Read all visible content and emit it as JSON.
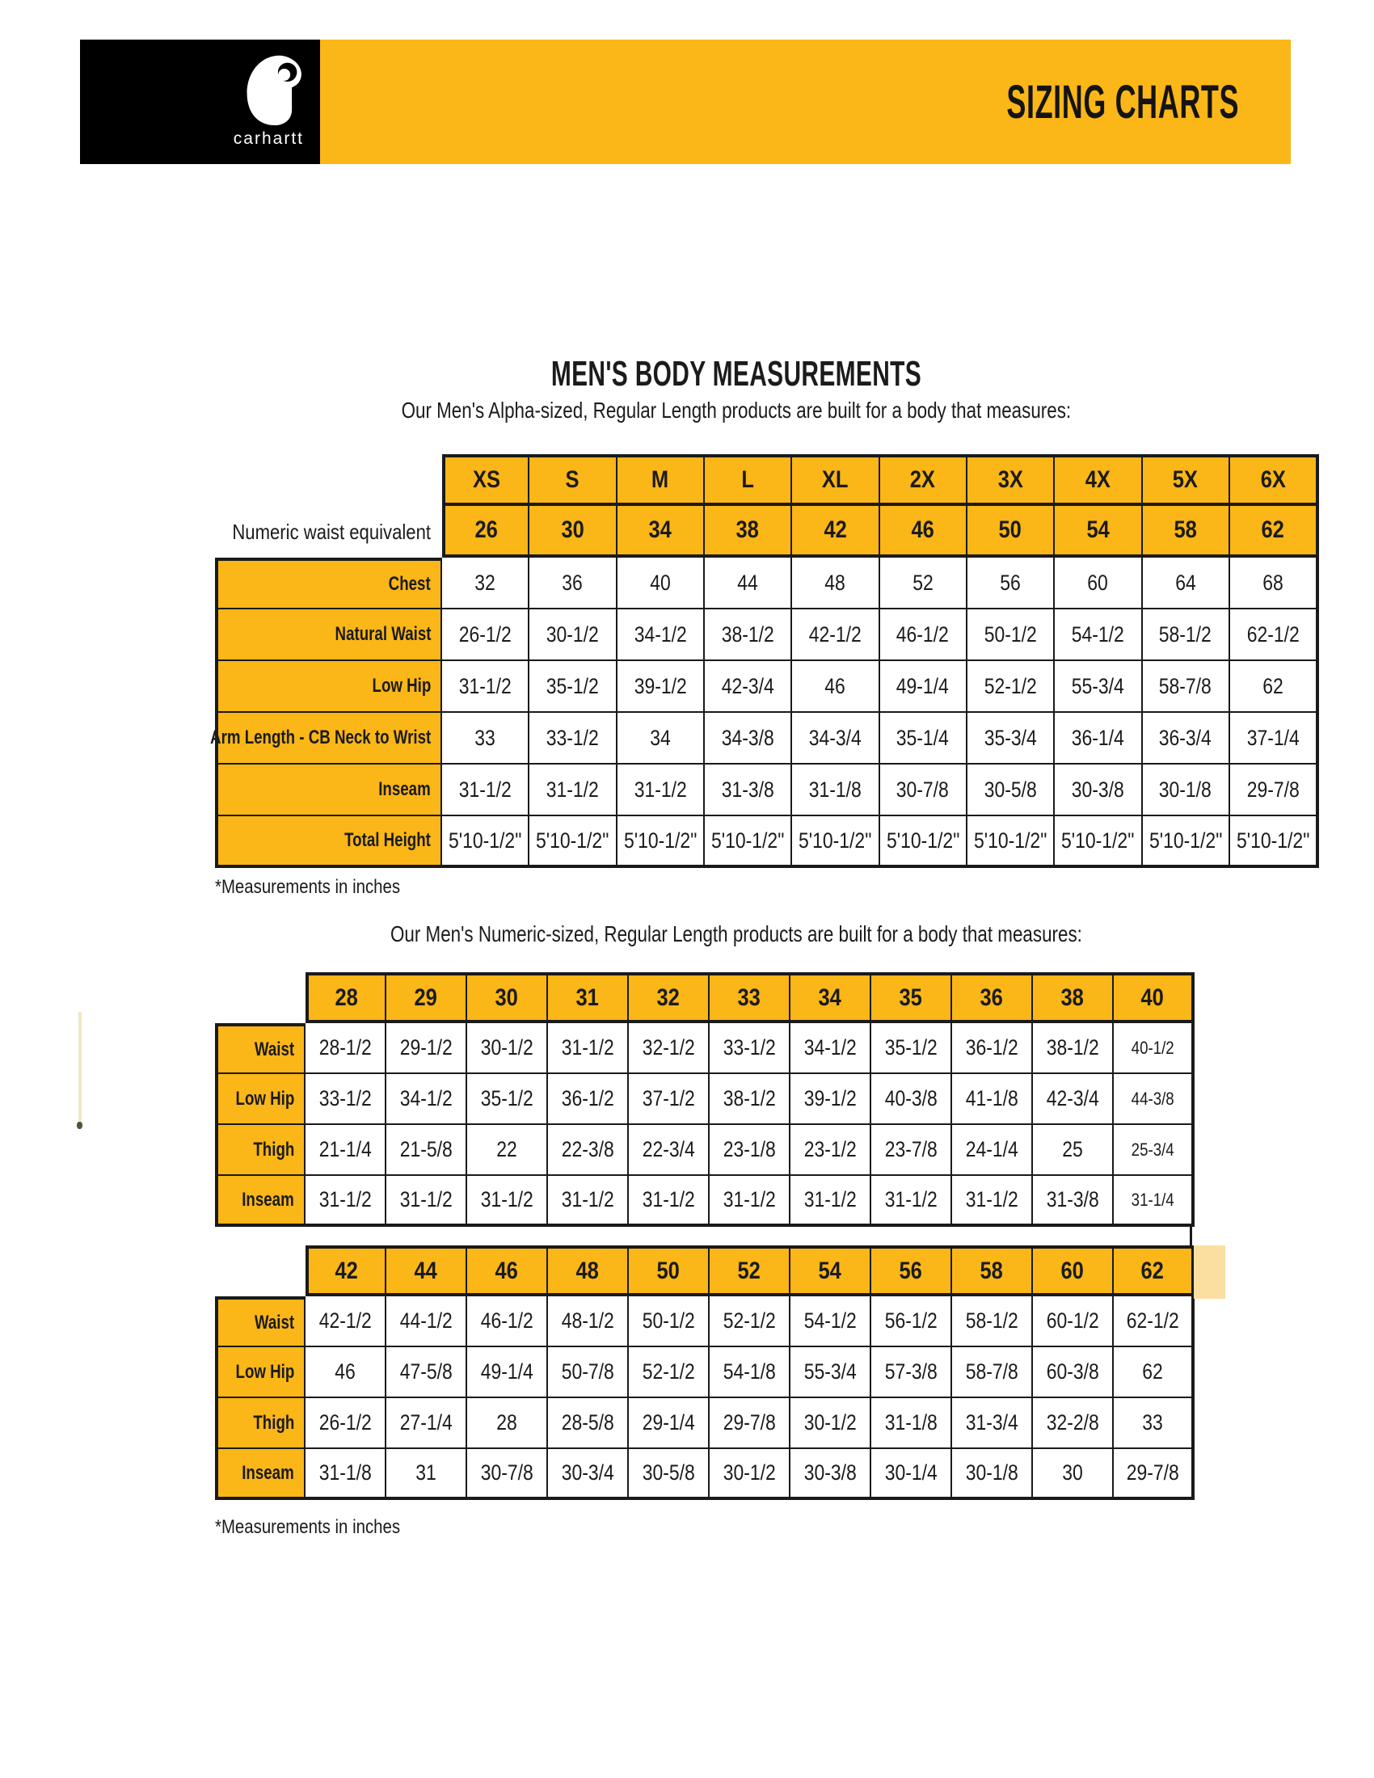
{
  "colors": {
    "brand_yellow": "#FBB617",
    "black": "#000000",
    "table_border": "#1A1A1A",
    "pale_yellow_artifact": "#FBDFA0"
  },
  "banner": {
    "brand_wordmark": "carhartt",
    "title": "SIZING CHARTS"
  },
  "section": {
    "title": "MEN'S BODY MEASUREMENTS",
    "alpha_intro": "Our Men's Alpha-sized, Regular Length products are built for a body that measures:",
    "numeric_intro": "Our Men's Numeric-sized, Regular Length products are built for a body that measures:",
    "footnote": "*Measurements in inches"
  },
  "tables": {
    "alpha": {
      "sizes": [
        "XS",
        "S",
        "M",
        "L",
        "XL",
        "2X",
        "3X",
        "4X",
        "5X",
        "6X"
      ],
      "waist_label": "Numeric waist equivalent",
      "waist_row": [
        "26",
        "30",
        "34",
        "38",
        "42",
        "46",
        "50",
        "54",
        "58",
        "62"
      ],
      "rows": [
        {
          "label": "Chest",
          "values": [
            "32",
            "36",
            "40",
            "44",
            "48",
            "52",
            "56",
            "60",
            "64",
            "68"
          ]
        },
        {
          "label": "Natural Waist",
          "values": [
            "26-1/2",
            "30-1/2",
            "34-1/2",
            "38-1/2",
            "42-1/2",
            "46-1/2",
            "50-1/2",
            "54-1/2",
            "58-1/2",
            "62-1/2"
          ]
        },
        {
          "label": "Low Hip",
          "values": [
            "31-1/2",
            "35-1/2",
            "39-1/2",
            "42-3/4",
            "46",
            "49-1/4",
            "52-1/2",
            "55-3/4",
            "58-7/8",
            "62"
          ]
        },
        {
          "label": "Arm Length - CB Neck to Wrist",
          "values": [
            "33",
            "33-1/2",
            "34",
            "34-3/8",
            "34-3/4",
            "35-1/4",
            "35-3/4",
            "36-1/4",
            "36-3/4",
            "37-1/4"
          ]
        },
        {
          "label": "Inseam",
          "values": [
            "31-1/2",
            "31-1/2",
            "31-1/2",
            "31-3/8",
            "31-1/8",
            "30-7/8",
            "30-5/8",
            "30-3/8",
            "30-1/8",
            "29-7/8"
          ]
        },
        {
          "label": "Total Height",
          "values": [
            "5'10-1/2\"",
            "5'10-1/2\"",
            "5'10-1/2\"",
            "5'10-1/2\"",
            "5'10-1/2\"",
            "5'10-1/2\"",
            "5'10-1/2\"",
            "5'10-1/2\"",
            "5'10-1/2\"",
            "5'10-1/2\""
          ]
        }
      ]
    },
    "numeric_a": {
      "sizes": [
        "28",
        "29",
        "30",
        "31",
        "32",
        "33",
        "34",
        "35",
        "36",
        "38",
        "40"
      ],
      "rows": [
        {
          "label": "Waist",
          "values": [
            "28-1/2",
            "29-1/2",
            "30-1/2",
            "31-1/2",
            "32-1/2",
            "33-1/2",
            "34-1/2",
            "35-1/2",
            "36-1/2",
            "38-1/2",
            "40-1/2"
          ]
        },
        {
          "label": "Low Hip",
          "values": [
            "33-1/2",
            "34-1/2",
            "35-1/2",
            "36-1/2",
            "37-1/2",
            "38-1/2",
            "39-1/2",
            "40-3/8",
            "41-1/8",
            "42-3/4",
            "44-3/8"
          ]
        },
        {
          "label": "Thigh",
          "values": [
            "21-1/4",
            "21-5/8",
            "22",
            "22-3/8",
            "22-3/4",
            "23-1/8",
            "23-1/2",
            "23-7/8",
            "24-1/4",
            "25",
            "25-3/4"
          ]
        },
        {
          "label": "Inseam",
          "values": [
            "31-1/2",
            "31-1/2",
            "31-1/2",
            "31-1/2",
            "31-1/2",
            "31-1/2",
            "31-1/2",
            "31-1/2",
            "31-1/2",
            "31-3/8",
            "31-1/4"
          ]
        }
      ]
    },
    "numeric_b": {
      "sizes": [
        "42",
        "44",
        "46",
        "48",
        "50",
        "52",
        "54",
        "56",
        "58",
        "60",
        "62"
      ],
      "rows": [
        {
          "label": "Waist",
          "values": [
            "42-1/2",
            "44-1/2",
            "46-1/2",
            "48-1/2",
            "50-1/2",
            "52-1/2",
            "54-1/2",
            "56-1/2",
            "58-1/2",
            "60-1/2",
            "62-1/2"
          ]
        },
        {
          "label": "Low Hip",
          "values": [
            "46",
            "47-5/8",
            "49-1/4",
            "50-7/8",
            "52-1/2",
            "54-1/8",
            "55-3/4",
            "57-3/8",
            "58-7/8",
            "60-3/8",
            "62"
          ]
        },
        {
          "label": "Thigh",
          "values": [
            "26-1/2",
            "27-1/4",
            "28",
            "28-5/8",
            "29-1/4",
            "29-7/8",
            "30-1/2",
            "31-1/8",
            "31-3/4",
            "32-2/8",
            "33"
          ]
        },
        {
          "label": "Inseam",
          "values": [
            "31-1/8",
            "31",
            "30-7/8",
            "30-3/4",
            "30-5/8",
            "30-1/2",
            "30-3/8",
            "30-1/4",
            "30-1/8",
            "30",
            "29-7/8"
          ]
        }
      ]
    }
  }
}
